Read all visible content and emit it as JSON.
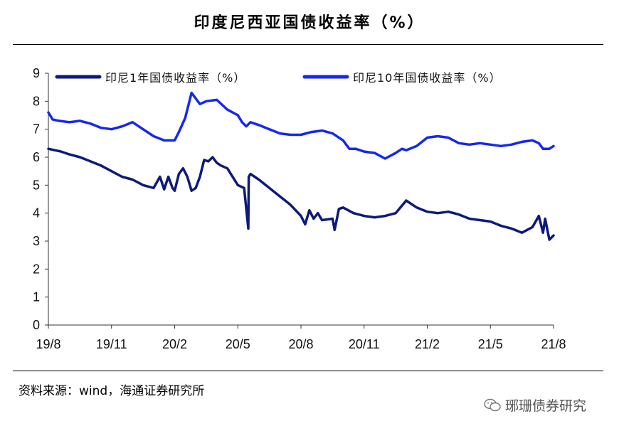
{
  "title": "印度尼西亚国债收益率（%）",
  "source": "资料来源：wind，海通证券研究所",
  "watermark": "琊珊债券研究",
  "watermark_icon": "wechat-icon",
  "colors": {
    "series1": "#0d1a7a",
    "series2": "#1428ee",
    "axis": "#333333"
  },
  "chart_data": {
    "type": "line",
    "ylim": [
      0,
      9
    ],
    "yticks": [
      "0",
      "1",
      "2",
      "3",
      "4",
      "5",
      "6",
      "7",
      "8",
      "9"
    ],
    "xticks": [
      "19/8",
      "19/11",
      "20/2",
      "20/5",
      "20/8",
      "20/11",
      "21/2",
      "21/5",
      "21/8"
    ],
    "x_range": [
      "2019-08",
      "2021-08"
    ],
    "grid": false,
    "legend_position": "top",
    "series": [
      {
        "name": "印尼1年国债收益率（%）",
        "color": "#0d1a7a",
        "x": [
          0,
          0.3,
          0.6,
          1,
          1.5,
          2,
          2.5,
          3,
          3.5,
          4,
          4.5,
          5,
          5.3,
          5.5,
          5.7,
          5.9,
          6,
          6.2,
          6.4,
          6.6,
          6.8,
          7,
          7.2,
          7.4,
          7.6,
          7.8,
          8,
          8.2,
          8.5,
          9,
          9.3,
          9.5,
          9.52,
          9.6,
          9.8,
          10,
          10.5,
          11,
          11.5,
          12,
          12.2,
          12.4,
          12.6,
          12.8,
          13,
          13.5,
          13.6,
          13.8,
          14,
          14.5,
          15,
          15.5,
          16,
          16.5,
          17,
          17.5,
          18,
          18.5,
          19,
          19.5,
          20,
          20.5,
          21,
          21.5,
          22,
          22.5,
          23,
          23.3,
          23.5,
          23.6,
          23.8,
          24
        ],
        "y": [
          6.3,
          6.25,
          6.2,
          6.1,
          6.0,
          5.85,
          5.7,
          5.5,
          5.3,
          5.2,
          5.0,
          4.9,
          5.3,
          4.85,
          5.3,
          4.9,
          4.8,
          5.4,
          5.6,
          5.3,
          4.8,
          4.9,
          5.3,
          5.9,
          5.85,
          6.0,
          5.8,
          5.7,
          5.6,
          5.0,
          4.9,
          3.45,
          5.3,
          5.4,
          5.3,
          5.2,
          4.9,
          4.6,
          4.3,
          3.9,
          3.6,
          4.1,
          3.8,
          4.0,
          3.75,
          3.8,
          3.4,
          4.15,
          4.2,
          4.0,
          3.9,
          3.85,
          3.9,
          4.0,
          4.45,
          4.2,
          4.05,
          4.0,
          4.05,
          3.95,
          3.8,
          3.75,
          3.7,
          3.55,
          3.45,
          3.3,
          3.5,
          3.9,
          3.3,
          3.8,
          3.05,
          3.2
        ]
      },
      {
        "name": "印尼10年国债收益率（%）",
        "color": "#1428ee",
        "x": [
          0,
          0.2,
          0.5,
          1,
          1.5,
          2,
          2.5,
          3,
          3.5,
          4,
          4.5,
          5,
          5.5,
          6,
          6.2,
          6.5,
          6.8,
          7,
          7.2,
          7.5,
          8,
          8.5,
          9,
          9.2,
          9.4,
          9.6,
          9.8,
          10,
          10.5,
          11,
          11.5,
          12,
          12.5,
          13,
          13.5,
          14,
          14.3,
          14.6,
          15,
          15.5,
          16,
          16.5,
          16.8,
          17,
          17.5,
          18,
          18.5,
          19,
          19.5,
          20,
          20.5,
          21,
          21.5,
          22,
          22.5,
          23,
          23.3,
          23.5,
          23.8,
          24
        ],
        "y": [
          7.6,
          7.35,
          7.3,
          7.25,
          7.3,
          7.2,
          7.05,
          7.0,
          7.1,
          7.25,
          7.0,
          6.75,
          6.6,
          6.6,
          6.9,
          7.4,
          8.3,
          8.1,
          7.9,
          8.0,
          8.05,
          7.7,
          7.5,
          7.25,
          7.1,
          7.25,
          7.2,
          7.15,
          7.0,
          6.85,
          6.8,
          6.8,
          6.9,
          6.95,
          6.85,
          6.6,
          6.3,
          6.3,
          6.2,
          6.15,
          5.95,
          6.15,
          6.3,
          6.25,
          6.4,
          6.7,
          6.75,
          6.7,
          6.5,
          6.45,
          6.5,
          6.45,
          6.4,
          6.45,
          6.55,
          6.6,
          6.5,
          6.3,
          6.3,
          6.4
        ]
      }
    ]
  }
}
